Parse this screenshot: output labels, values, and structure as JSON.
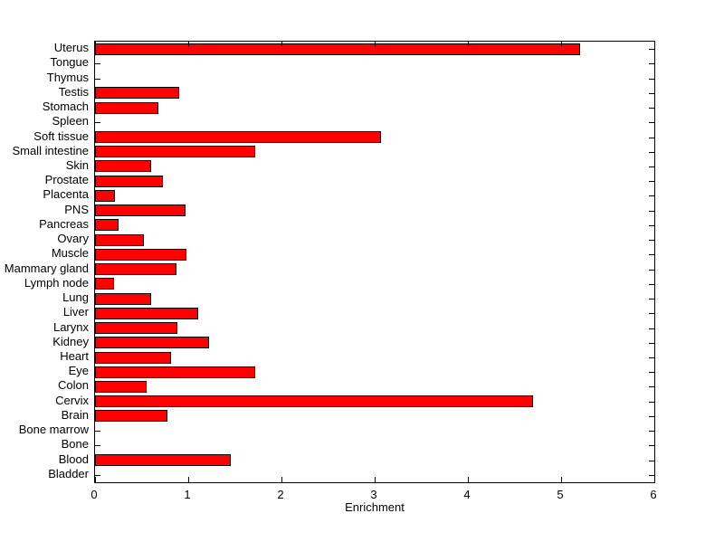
{
  "figure": {
    "background_color": "#ffffff",
    "axis_color": "#000000",
    "text_color": "#000000"
  },
  "chart_data": {
    "type": "bar",
    "orientation": "horizontal",
    "title": "",
    "xlabel": "Enrichment",
    "ylabel": "",
    "xlim": [
      0,
      6
    ],
    "grid": false,
    "legend": "none",
    "bar_color": "#ff0000",
    "bar_edge_color": "#000000",
    "x_tick_labels": [
      "0",
      "1",
      "2",
      "3",
      "4",
      "5",
      "6"
    ],
    "x_tick_values": [
      0,
      1,
      2,
      3,
      4,
      5,
      6
    ],
    "categories": [
      "Uterus",
      "Tongue",
      "Thymus",
      "Testis",
      "Stomach",
      "Spleen",
      "Soft tissue",
      "Small intestine",
      "Skin",
      "Prostate",
      "Placenta",
      "PNS",
      "Pancreas",
      "Ovary",
      "Muscle",
      "Mammary gland",
      "Lymph node",
      "Lung",
      "Liver",
      "Larynx",
      "Kidney",
      "Heart",
      "Eye",
      "Colon",
      "Cervix",
      "Brain",
      "Bone marrow",
      "Bone",
      "Blood",
      "Bladder"
    ],
    "values": [
      5.2,
      0,
      0,
      0.9,
      0.68,
      0,
      3.07,
      1.72,
      0.6,
      0.73,
      0.21,
      0.97,
      0.25,
      0.52,
      0.98,
      0.87,
      0.2,
      0.6,
      1.11,
      0.88,
      1.22,
      0.82,
      1.72,
      0.55,
      4.7,
      0.78,
      0,
      0,
      1.46,
      0
    ]
  }
}
